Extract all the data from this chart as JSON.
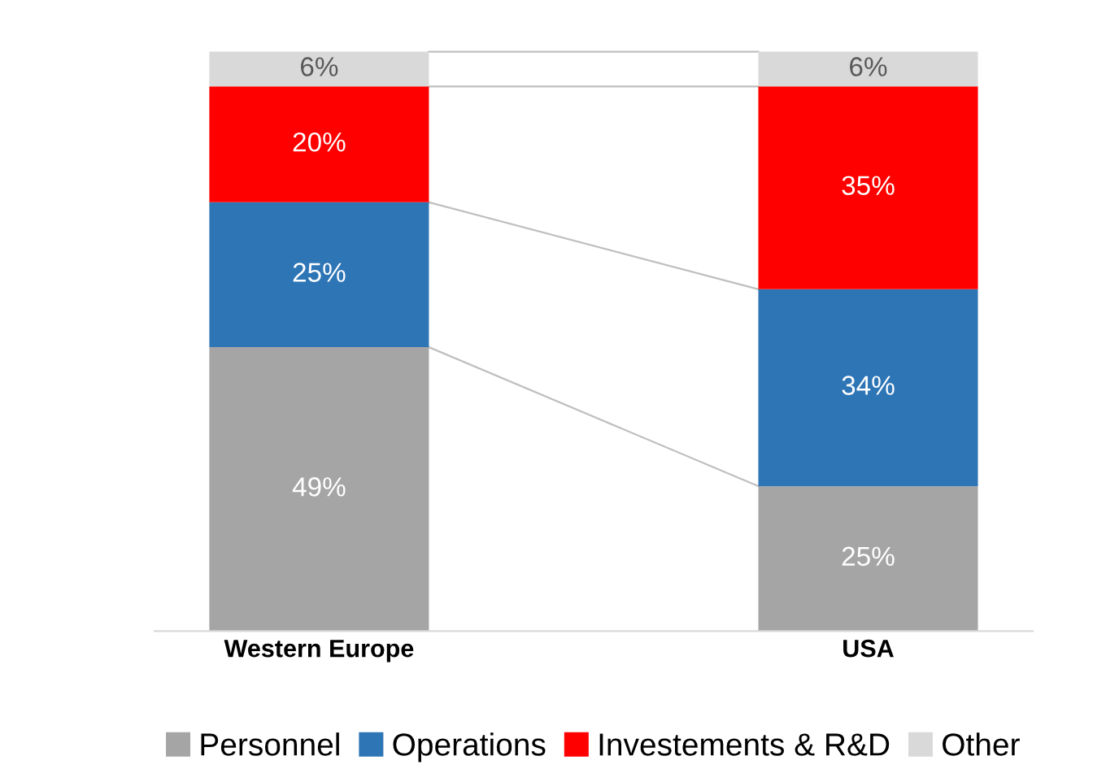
{
  "chart_data": {
    "type": "bar",
    "stacked": true,
    "categories": [
      "Western Europe",
      "USA"
    ],
    "series": [
      {
        "name": "Personnel",
        "color": "#a5a5a5",
        "values": [
          49,
          25
        ],
        "value_labels": [
          "49%",
          "25%"
        ]
      },
      {
        "name": "Operations",
        "color": "#2e75b6",
        "values": [
          25,
          34
        ],
        "value_labels": [
          "25%",
          "34%"
        ]
      },
      {
        "name": "Investements & R&D",
        "color": "#ff0000",
        "values": [
          20,
          35
        ],
        "value_labels": [
          "20%",
          "35%"
        ]
      },
      {
        "name": "Other",
        "color": "#d9d9d9",
        "values": [
          6,
          6
        ],
        "value_labels": [
          "6%",
          "6%"
        ]
      }
    ],
    "legend": "bottom",
    "grid": false,
    "tick_labels": "x"
  }
}
